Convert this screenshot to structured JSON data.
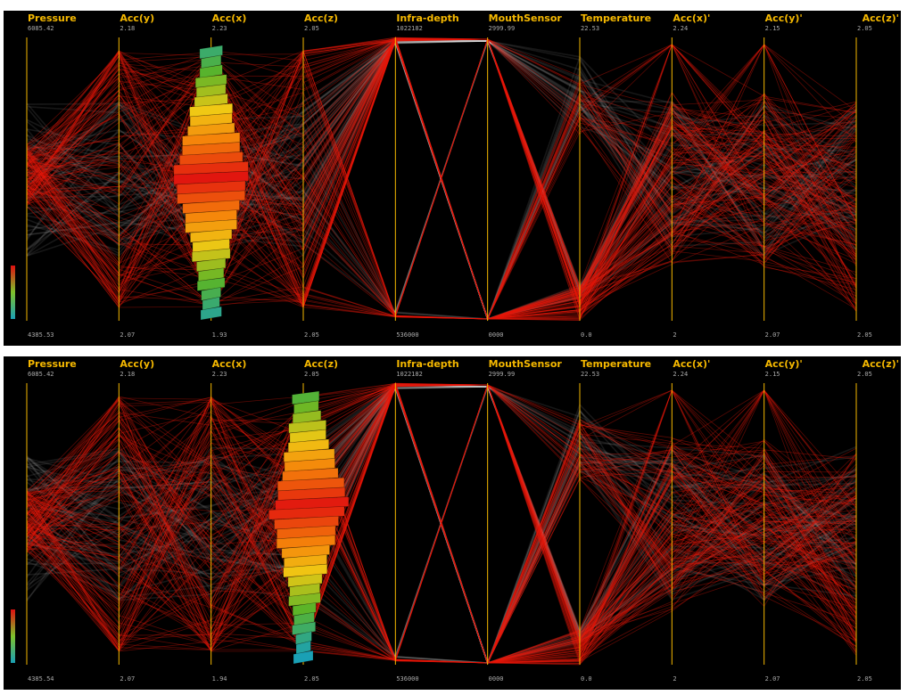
{
  "colors": {
    "background": "#000000",
    "axis": "#f5b800",
    "highlight": "#e8180a",
    "context": "#ffffff",
    "histogram_low": "#1aa0b5",
    "histogram_mid": "#7ec22b",
    "histogram_high": "#e01010"
  },
  "chart_data": [
    {
      "type": "parallel-coordinates",
      "histogram_axis": "Acc(x)",
      "axes": [
        {
          "name": "Pressure",
          "max": "6085.42",
          "min": "4385.53"
        },
        {
          "name": "Acc(y)",
          "max": "2.18",
          "min": "2.07"
        },
        {
          "name": "Acc(x)",
          "max": "2.23",
          "min": "1.93"
        },
        {
          "name": "Acc(z)",
          "max": "2.05",
          "min": "2.05"
        },
        {
          "name": "Infra-depth",
          "max": "1022182",
          "min": "536000"
        },
        {
          "name": "MouthSensor",
          "max": "2999.99",
          "min": "0000"
        },
        {
          "name": "Temperature",
          "max": "22.53",
          "min": "0.0"
        },
        {
          "name": "Acc(x)'",
          "max": "2.24",
          "min": "2"
        },
        {
          "name": "Acc(y)'",
          "max": "2.15",
          "min": "2.07"
        },
        {
          "name": "Acc(z)'",
          "max": "2.05",
          "min": "2.05"
        }
      ]
    },
    {
      "type": "parallel-coordinates",
      "histogram_axis": "Acc(z)",
      "axes": [
        {
          "name": "Pressure",
          "max": "6085.42",
          "min": "4385.54"
        },
        {
          "name": "Acc(y)",
          "max": "2.18",
          "min": "2.07"
        },
        {
          "name": "Acc(x)",
          "max": "2.23",
          "min": "1.94"
        },
        {
          "name": "Acc(z)",
          "max": "2.05",
          "min": "2.05"
        },
        {
          "name": "Infra-depth",
          "max": "1022182",
          "min": "536000"
        },
        {
          "name": "MouthSensor",
          "max": "2999.99",
          "min": "0000"
        },
        {
          "name": "Temperature",
          "max": "22.53",
          "min": "0.0"
        },
        {
          "name": "Acc(x)'",
          "max": "2.24",
          "min": "2"
        },
        {
          "name": "Acc(y)'",
          "max": "2.15",
          "min": "2.07"
        },
        {
          "name": "Acc(z)'",
          "max": "2.05",
          "min": "2.05"
        }
      ]
    }
  ]
}
